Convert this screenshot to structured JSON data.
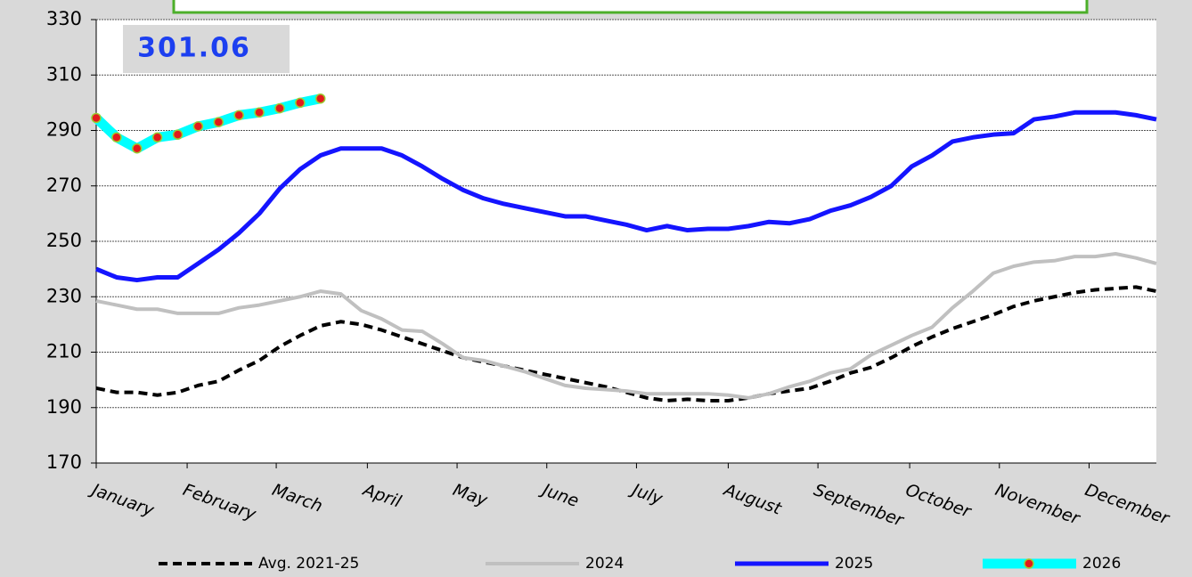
{
  "chart_data": {
    "type": "line",
    "annotation": "301.06",
    "x": [
      0,
      1,
      2,
      3,
      4,
      5,
      6,
      7,
      8,
      9,
      10,
      11,
      12,
      13,
      14,
      15,
      16,
      17,
      18,
      19,
      20,
      21,
      22,
      23,
      24,
      25,
      26,
      27,
      28,
      29,
      30,
      31,
      32,
      33,
      34,
      35,
      36,
      37,
      38,
      39,
      40,
      41,
      42,
      43,
      44,
      45,
      46,
      47,
      48,
      49,
      50,
      51,
      52
    ],
    "xlim": [
      0,
      52
    ],
    "xticks": [
      {
        "value": 0,
        "label": "January"
      },
      {
        "value": 4.46,
        "label": "February"
      },
      {
        "value": 8.83,
        "label": "March"
      },
      {
        "value": 13.3,
        "label": "April"
      },
      {
        "value": 17.7,
        "label": "May"
      },
      {
        "value": 22.1,
        "label": "June"
      },
      {
        "value": 26.5,
        "label": "July"
      },
      {
        "value": 31.0,
        "label": "August"
      },
      {
        "value": 35.4,
        "label": "September"
      },
      {
        "value": 39.9,
        "label": "October"
      },
      {
        "value": 44.3,
        "label": "November"
      },
      {
        "value": 48.7,
        "label": "December"
      }
    ],
    "ylim": [
      170,
      330
    ],
    "yticks": [
      170,
      190,
      210,
      230,
      250,
      270,
      290,
      310,
      330
    ],
    "grid": true,
    "series": [
      {
        "name": "Avg. 2021-25",
        "color": "#000000",
        "dash": true,
        "values": [
          197,
          195.5,
          195.5,
          194.5,
          195.5,
          198,
          199.5,
          203.5,
          207,
          212,
          216,
          219.5,
          221,
          220,
          218,
          215.5,
          213,
          210.5,
          208,
          206.5,
          205,
          203.5,
          202,
          200.5,
          199,
          197.5,
          195.5,
          193.5,
          192.5,
          193,
          192.5,
          192.5,
          193.5,
          195,
          196,
          197,
          199.5,
          202.5,
          204.5,
          208,
          212,
          215.5,
          218.5,
          221,
          223.5,
          226.5,
          228.5,
          230,
          231.5,
          232.5,
          233,
          233.5,
          232
        ]
      },
      {
        "name": "2024",
        "color": "#c0c0c0",
        "values": [
          228.5,
          227,
          225.5,
          225.5,
          224,
          224,
          224,
          226,
          227,
          228.5,
          230,
          232,
          231,
          225,
          222,
          218,
          217.5,
          213,
          208,
          207,
          205,
          203,
          200.5,
          198,
          197,
          196.5,
          196,
          195,
          195,
          195,
          195,
          194.5,
          193.5,
          195,
          197.5,
          199.5,
          202.5,
          204,
          209,
          212.5,
          216,
          219,
          226,
          232,
          238.5,
          241,
          242.5,
          243,
          244.5,
          244.5,
          245.5,
          244,
          242
        ]
      },
      {
        "name": "2025",
        "color": "#1414ff",
        "values": [
          240,
          237,
          236,
          237,
          237,
          242,
          247,
          253,
          260,
          269,
          276,
          281,
          283.5,
          283.5,
          283.5,
          281,
          277,
          272.5,
          268.5,
          265.5,
          263.5,
          262,
          260.5,
          259,
          259,
          257.5,
          256,
          254,
          255.5,
          254,
          254.5,
          254.5,
          255.5,
          257,
          256.5,
          258,
          261,
          263,
          266,
          270,
          277,
          281,
          286,
          287.5,
          288.5,
          289,
          294,
          295,
          296.5,
          296.5,
          296.5,
          295.5,
          294
        ]
      },
      {
        "name": "2026",
        "color": "#00ffff",
        "marker_color": "#e31a1c",
        "values": [
          294.5,
          287.5,
          283.5,
          287.5,
          288.5,
          291.5,
          293,
          295.5,
          296.5,
          298,
          300,
          301.5,
          null,
          null,
          null,
          null,
          null,
          null,
          null,
          null,
          null,
          null,
          null,
          null,
          null,
          null,
          null,
          null,
          null,
          null,
          null,
          null,
          null,
          null,
          null,
          null,
          null,
          null,
          null,
          null,
          null,
          null,
          null,
          null,
          null,
          null,
          null,
          null,
          null,
          null,
          null,
          null,
          null
        ]
      }
    ]
  }
}
